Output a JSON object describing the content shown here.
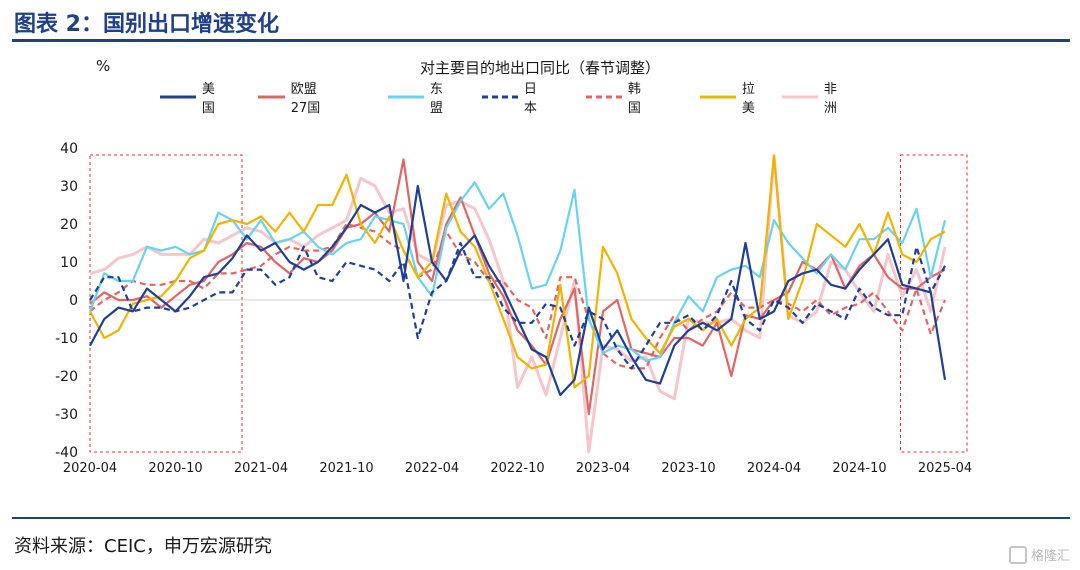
{
  "figure_title": "图表 2：国别出口增速变化",
  "source": "资料来源：CEIC，申万宏源研究",
  "watermark": "格隆汇",
  "chart_data": {
    "type": "line",
    "title": "对主要目的地出口同比（春节调整）",
    "ylabel": "%",
    "ylim": [
      -40,
      40
    ],
    "y_ticks": [
      40,
      30,
      20,
      10,
      0,
      -10,
      -20,
      -30,
      -40
    ],
    "x": [
      "2020-04",
      "2020-05",
      "2020-06",
      "2020-07",
      "2020-08",
      "2020-09",
      "2020-10",
      "2020-11",
      "2020-12",
      "2021-01",
      "2021-02",
      "2021-03",
      "2021-04",
      "2021-05",
      "2021-06",
      "2021-07",
      "2021-08",
      "2021-09",
      "2021-10",
      "2021-11",
      "2021-12",
      "2022-01",
      "2022-02",
      "2022-03",
      "2022-04",
      "2022-05",
      "2022-06",
      "2022-07",
      "2022-08",
      "2022-09",
      "2022-10",
      "2022-11",
      "2022-12",
      "2023-01",
      "2023-02",
      "2023-03",
      "2023-04",
      "2023-05",
      "2023-06",
      "2023-07",
      "2023-08",
      "2023-09",
      "2023-10",
      "2023-11",
      "2023-12",
      "2024-01",
      "2024-02",
      "2024-03",
      "2024-04",
      "2024-05",
      "2024-06",
      "2024-07",
      "2024-08",
      "2024-09",
      "2024-10",
      "2024-11",
      "2024-12",
      "2025-01",
      "2025-02",
      "2025-03",
      "2025-04"
    ],
    "x_tick_labels": [
      "2020-04",
      "2020-10",
      "2021-04",
      "2021-10",
      "2022-04",
      "2022-10",
      "2023-04",
      "2023-10",
      "2024-04",
      "2024-10",
      "2025-04"
    ],
    "highlight_ranges": [
      [
        "2020-04",
        "2020-12"
      ],
      [
        "2025-02",
        "2025-04"
      ]
    ],
    "grid": false,
    "legend_position": "top",
    "series": [
      {
        "name": "美国",
        "color": "#1f3f96",
        "dash": "solid",
        "values": [
          -12,
          -5,
          -2,
          -3,
          3,
          0,
          -3,
          1,
          6,
          7,
          11,
          17,
          13,
          15,
          10,
          8,
          10,
          14,
          19,
          25,
          23,
          25,
          5,
          30,
          10,
          5,
          13,
          17,
          9,
          3,
          -5,
          -13,
          -15,
          -25,
          -21,
          -2,
          -13,
          -8,
          -15,
          -21,
          -22,
          -12,
          -8,
          -6,
          -8,
          -5,
          15,
          -5,
          -3,
          5,
          7,
          8,
          4,
          3,
          8,
          12,
          16,
          4,
          3,
          2,
          -21
        ]
      },
      {
        "name": "欧盟27国",
        "color": "#e06666",
        "dash": "solid",
        "values": [
          -1,
          2,
          0,
          0,
          1,
          -2,
          1,
          4,
          5,
          10,
          12,
          15,
          14,
          10,
          7,
          11,
          10,
          13,
          19,
          20,
          23,
          18,
          37,
          10,
          5,
          20,
          27,
          17,
          7,
          1,
          -8,
          -12,
          -17,
          -5,
          3,
          -30,
          -3,
          0,
          -13,
          -14,
          -15,
          -10,
          -10,
          -12,
          -6,
          -20,
          -4,
          -5,
          0,
          2,
          10,
          8,
          12,
          3,
          9,
          12,
          6,
          3,
          3,
          6,
          8
        ]
      },
      {
        "name": "东盟",
        "color": "#6ad2f0",
        "dash": "solid",
        "values": [
          -3,
          7,
          5,
          5,
          14,
          13,
          14,
          12,
          13,
          23,
          21,
          16,
          21,
          15,
          16,
          18,
          14,
          12,
          15,
          16,
          22,
          21,
          20,
          6,
          1,
          19,
          26,
          31,
          24,
          28,
          17,
          3,
          4,
          13,
          29,
          -5,
          -14,
          -12,
          -13,
          -16,
          -15,
          -6,
          1,
          -3,
          6,
          8,
          9,
          6,
          21,
          15,
          11,
          7,
          12,
          8,
          16,
          16,
          19,
          15,
          24,
          6,
          21
        ]
      },
      {
        "name": "日本",
        "color": "#1f3f96",
        "dash": "dash",
        "values": [
          0,
          6,
          6,
          -3,
          -2,
          -2,
          -3,
          -2,
          0,
          2,
          2,
          8,
          8,
          4,
          6,
          14,
          6,
          5,
          10,
          9,
          8,
          5,
          10,
          -10,
          2,
          5,
          15,
          6,
          6,
          -2,
          -6,
          -6,
          -1,
          -2,
          -12,
          -3,
          -5,
          -13,
          -18,
          -12,
          -6,
          -6,
          -4,
          -8,
          -4,
          5,
          -5,
          -8,
          0,
          -2,
          -6,
          -1,
          -3,
          -5,
          3,
          -2,
          -4,
          -4,
          14,
          2,
          9
        ]
      },
      {
        "name": "韩国",
        "color": "#e06666",
        "dash": "dash",
        "values": [
          -3,
          0,
          2,
          5,
          4,
          4,
          5,
          5,
          3,
          7,
          7,
          8,
          9,
          12,
          14,
          13,
          13,
          14,
          20,
          19,
          18,
          15,
          13,
          6,
          8,
          18,
          12,
          10,
          5,
          5,
          0,
          -2,
          -10,
          6,
          6,
          -5,
          -14,
          -17,
          -18,
          -18,
          -10,
          -4,
          -8,
          -5,
          -3,
          2,
          -2,
          -2,
          0,
          -1,
          -3,
          0,
          -4,
          -2,
          -1,
          2,
          -3,
          -8,
          3,
          -9,
          0
        ]
      },
      {
        "name": "拉美",
        "color": "#f0b400",
        "dash": "solid",
        "values": [
          -3,
          -10,
          -8,
          -1,
          0,
          1,
          5,
          11,
          13,
          20,
          21,
          20,
          22,
          18,
          23,
          18,
          25,
          25,
          33,
          20,
          15,
          22,
          13,
          6,
          10,
          28,
          18,
          14,
          5,
          -5,
          -15,
          -18,
          -17,
          4,
          -23,
          -20,
          14,
          7,
          -5,
          -10,
          -14,
          -7,
          -5,
          -8,
          -5,
          -12,
          -5,
          -2,
          38,
          -5,
          5,
          20,
          17,
          14,
          20,
          12,
          23,
          12,
          10,
          16,
          18
        ]
      },
      {
        "name": "非洲",
        "color": "#f5c6cb",
        "dash": "solid",
        "values": [
          7,
          8,
          11,
          12,
          14,
          12,
          12,
          12,
          16,
          15,
          17,
          19,
          18,
          15,
          16,
          14,
          17,
          19,
          21,
          32,
          30,
          23,
          24,
          12,
          10,
          25,
          26,
          24,
          16,
          5,
          -23,
          -15,
          -25,
          -10,
          5,
          -40,
          -12,
          -13,
          -16,
          -15,
          -24,
          -26,
          -5,
          -6,
          -6,
          -5,
          -8,
          -10,
          38,
          -4,
          -6,
          -3,
          10,
          8,
          2,
          -3,
          12,
          1,
          8,
          -3,
          14
        ]
      }
    ]
  }
}
